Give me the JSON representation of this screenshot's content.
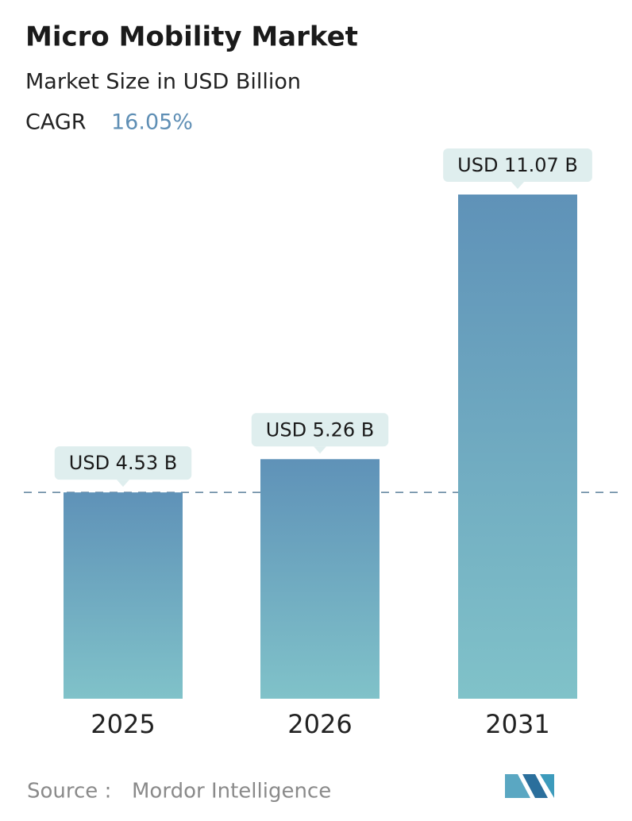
{
  "chart_data": {
    "type": "bar",
    "title": "Micro Mobility Market",
    "subtitle": "Market Size in USD Billion",
    "cagr_label": "CAGR",
    "cagr_value": "16.05%",
    "categories": [
      "2025",
      "2026",
      "2031"
    ],
    "values": [
      4.53,
      5.26,
      11.07
    ],
    "value_labels": [
      "USD 4.53 B",
      "USD 5.26 B",
      "USD 11.07 B"
    ],
    "color_top": "#5f92b8",
    "color_bottom": "#80c2c9",
    "source_label": "Source :",
    "source": "Mordor Intelligence"
  }
}
